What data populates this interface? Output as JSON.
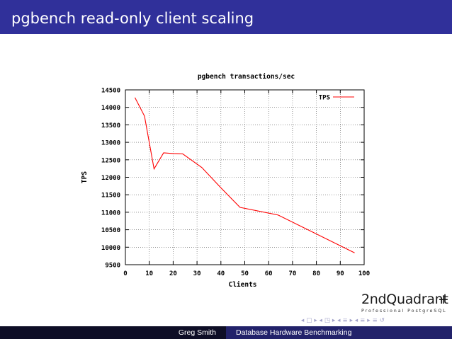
{
  "slide": {
    "title": "pgbench read-only client scaling"
  },
  "logo": {
    "name": "2ndQuadrant",
    "plus_glyph": "+",
    "tagline": "Professional PostgreSQL"
  },
  "nav": {
    "icons": [
      "nav-first-icon",
      "nav-prev-icon",
      "nav-section-icon",
      "nav-subsection-icon",
      "nav-frame-icon",
      "nav-search-icon"
    ],
    "glyphs": [
      "◂",
      "□",
      "▸",
      "◂",
      "◳",
      "▸",
      "◂",
      "≡",
      "▸",
      "◂",
      "≡",
      "▸",
      "≡",
      "↺"
    ]
  },
  "footer": {
    "author": "Greg Smith",
    "talk": "Database Hardware Benchmarking"
  },
  "chart_data": {
    "type": "line",
    "title": "pgbench transactions/sec",
    "xlabel": "Clients",
    "ylabel": "TPS",
    "xlim": [
      0,
      100
    ],
    "ylim": [
      9500,
      14500
    ],
    "xticks": [
      0,
      10,
      20,
      30,
      40,
      50,
      60,
      70,
      80,
      90,
      100
    ],
    "yticks": [
      9500,
      10000,
      10500,
      11000,
      11500,
      12000,
      12500,
      13000,
      13500,
      14000,
      14500
    ],
    "grid": true,
    "legend_position": "top-right",
    "series": [
      {
        "name": "TPS",
        "color": "#ff0000",
        "x": [
          4,
          8,
          12,
          16,
          20,
          24,
          32,
          40,
          48,
          64,
          96
        ],
        "y": [
          14280,
          13750,
          12240,
          12700,
          12680,
          12670,
          12280,
          11700,
          11140,
          10920,
          9840
        ]
      }
    ]
  }
}
